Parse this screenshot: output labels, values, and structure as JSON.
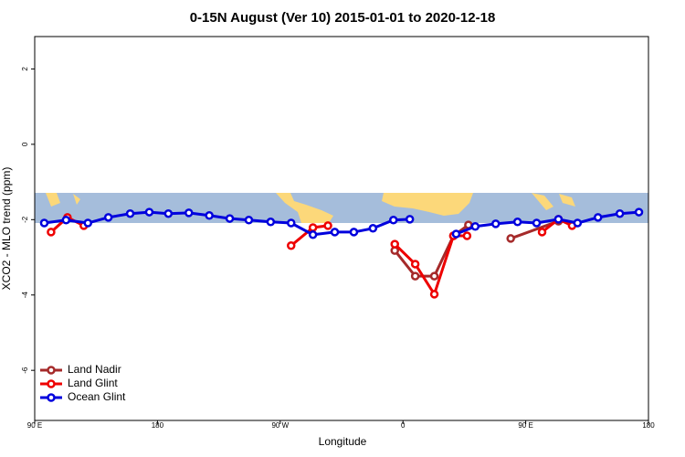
{
  "chart_data": {
    "type": "line",
    "title": "0-15N August (Ver 10)   2015-01-01 to 2020-12-18",
    "x_label": "Longitude",
    "y_label": "XCO2 - MLO trend (ppm)",
    "xlim": [
      90,
      540
    ],
    "ylim": [
      -7.33,
      2.86
    ],
    "xticks": [
      {
        "value": 90,
        "label": "90 E"
      },
      180,
      {
        "value": 270,
        "label": "90 W"
      },
      {
        "value": 360,
        "label": "0"
      },
      {
        "value": 450,
        "label": "90 E"
      },
      {
        "value": 540,
        "label": "180"
      }
    ],
    "yticks": [
      2,
      0,
      -2,
      -4,
      -6
    ],
    "legend": "bottom-left",
    "series": [
      {
        "name": "Land Nadir",
        "color": "#a52a2a",
        "x": [
          354,
          369,
          383,
          397,
          408,
          null,
          439,
          474
        ],
        "values": [
          -2.82,
          -3.5,
          -3.5,
          -2.43,
          -2.14,
          null,
          -2.5,
          -2.04
        ]
      },
      {
        "name": "Land Glint",
        "color": "#ee0000",
        "x": [
          102,
          114,
          126,
          null,
          278,
          294,
          305,
          null,
          354,
          369,
          383,
          397,
          407,
          null,
          462,
          474,
          484
        ],
        "values": [
          -2.33,
          -1.94,
          -2.16,
          null,
          -2.69,
          -2.21,
          -2.16,
          null,
          -2.65,
          -3.18,
          -3.98,
          -2.43,
          -2.43,
          null,
          -2.33,
          -1.99,
          -2.16
        ]
      },
      {
        "name": "Ocean Glint",
        "color": "#0000dd",
        "x": [
          97,
          113,
          129,
          144,
          160,
          174,
          188,
          203,
          218,
          233,
          247,
          263,
          278,
          294,
          310,
          324,
          338,
          353,
          365,
          null,
          399,
          413,
          428,
          444,
          458,
          474,
          488,
          503,
          519,
          533
        ],
        "values": [
          -2.09,
          -2.01,
          -2.09,
          -1.94,
          -1.84,
          -1.8,
          -1.84,
          -1.82,
          -1.89,
          -1.97,
          -2.01,
          -2.06,
          -2.09,
          -2.4,
          -2.33,
          -2.33,
          -2.23,
          -2.01,
          -1.99,
          null,
          -2.38,
          -2.18,
          -2.11,
          -2.06,
          -2.09,
          -1.99,
          -2.09,
          -1.94,
          -1.84,
          -1.8
        ]
      }
    ]
  }
}
